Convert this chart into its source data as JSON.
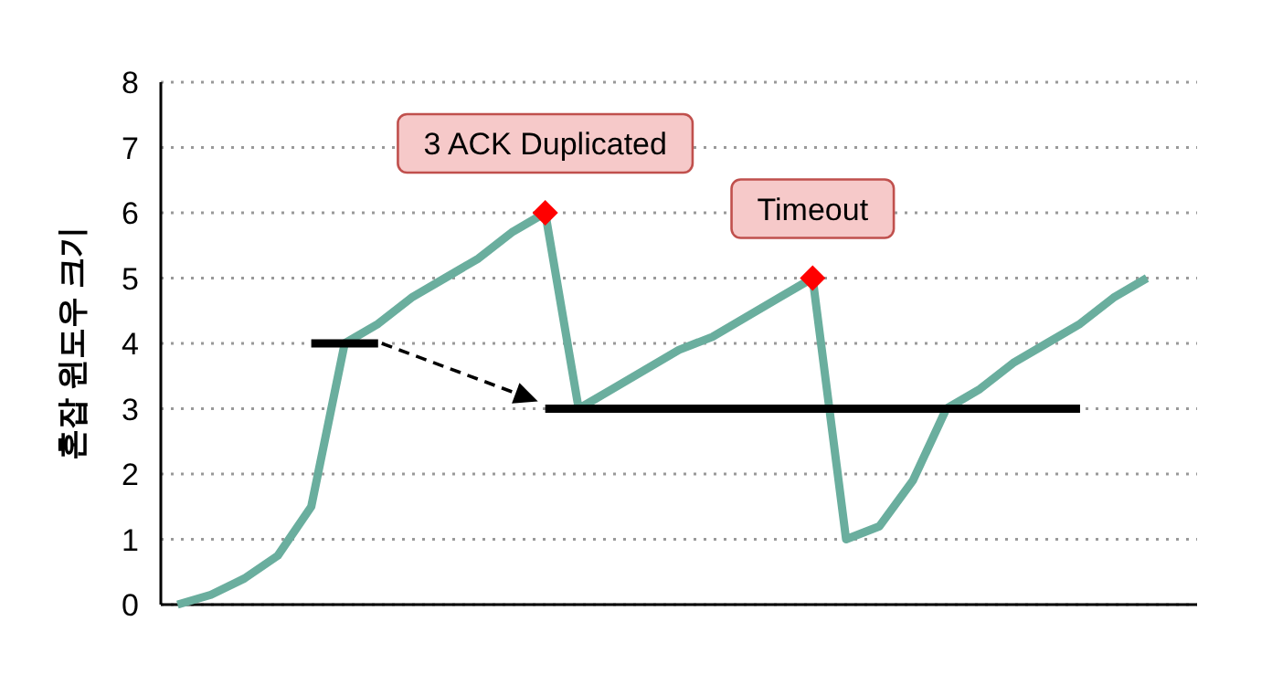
{
  "chart_data": {
    "type": "line",
    "ylabel": "혼잡 윈도우 크기",
    "ylim": [
      0,
      8
    ],
    "yticks": [
      0,
      1,
      2,
      3,
      4,
      5,
      6,
      7,
      8
    ],
    "grid": "y",
    "tick_labels": "y",
    "categories": [
      null,
      null,
      null,
      null,
      null,
      null,
      null,
      null,
      null,
      null,
      null,
      null,
      null,
      null,
      null,
      null,
      null,
      null,
      null,
      null,
      null,
      null,
      null,
      null,
      null,
      null,
      null,
      null,
      null,
      null,
      null
    ],
    "series": [
      {
        "type": "line",
        "color": "#6aae9e",
        "values": [
          0,
          0.15,
          0.4,
          0.75,
          1.5,
          4,
          4.3,
          4.7,
          5,
          5.3,
          5.7,
          6,
          3,
          3.3,
          3.6,
          3.9,
          4.1,
          4.4,
          4.7,
          5,
          1,
          1.2,
          1.9,
          3,
          3.3,
          3.7,
          4,
          4.3,
          4.7,
          5,
          null
        ]
      },
      {
        "type": "line",
        "color": "#000000",
        "values": [
          null,
          null,
          null,
          null,
          4,
          4,
          4,
          null,
          null,
          null,
          null,
          null,
          null,
          null,
          null,
          null,
          null,
          null,
          null,
          null,
          null,
          null,
          null,
          null,
          null,
          null,
          null,
          null,
          null,
          null,
          null
        ]
      },
      {
        "type": "line",
        "color": "#000000",
        "values": [
          null,
          null,
          null,
          null,
          null,
          null,
          null,
          null,
          null,
          null,
          null,
          3,
          3,
          3,
          3,
          3,
          3,
          3,
          3,
          3,
          3,
          3,
          3,
          3,
          3,
          3,
          3,
          3,
          null,
          null,
          null
        ]
      },
      {
        "type": "scatter",
        "color": "#ff0000",
        "marker": "diamond",
        "values": [
          null,
          null,
          null,
          null,
          null,
          null,
          null,
          null,
          null,
          null,
          null,
          6,
          null,
          null,
          null,
          null,
          null,
          null,
          null,
          5,
          null,
          null,
          null,
          null,
          null,
          null,
          null,
          null,
          null,
          null,
          null
        ]
      }
    ],
    "annotations": [
      "3 ACK Duplicated",
      "Timeout"
    ]
  }
}
